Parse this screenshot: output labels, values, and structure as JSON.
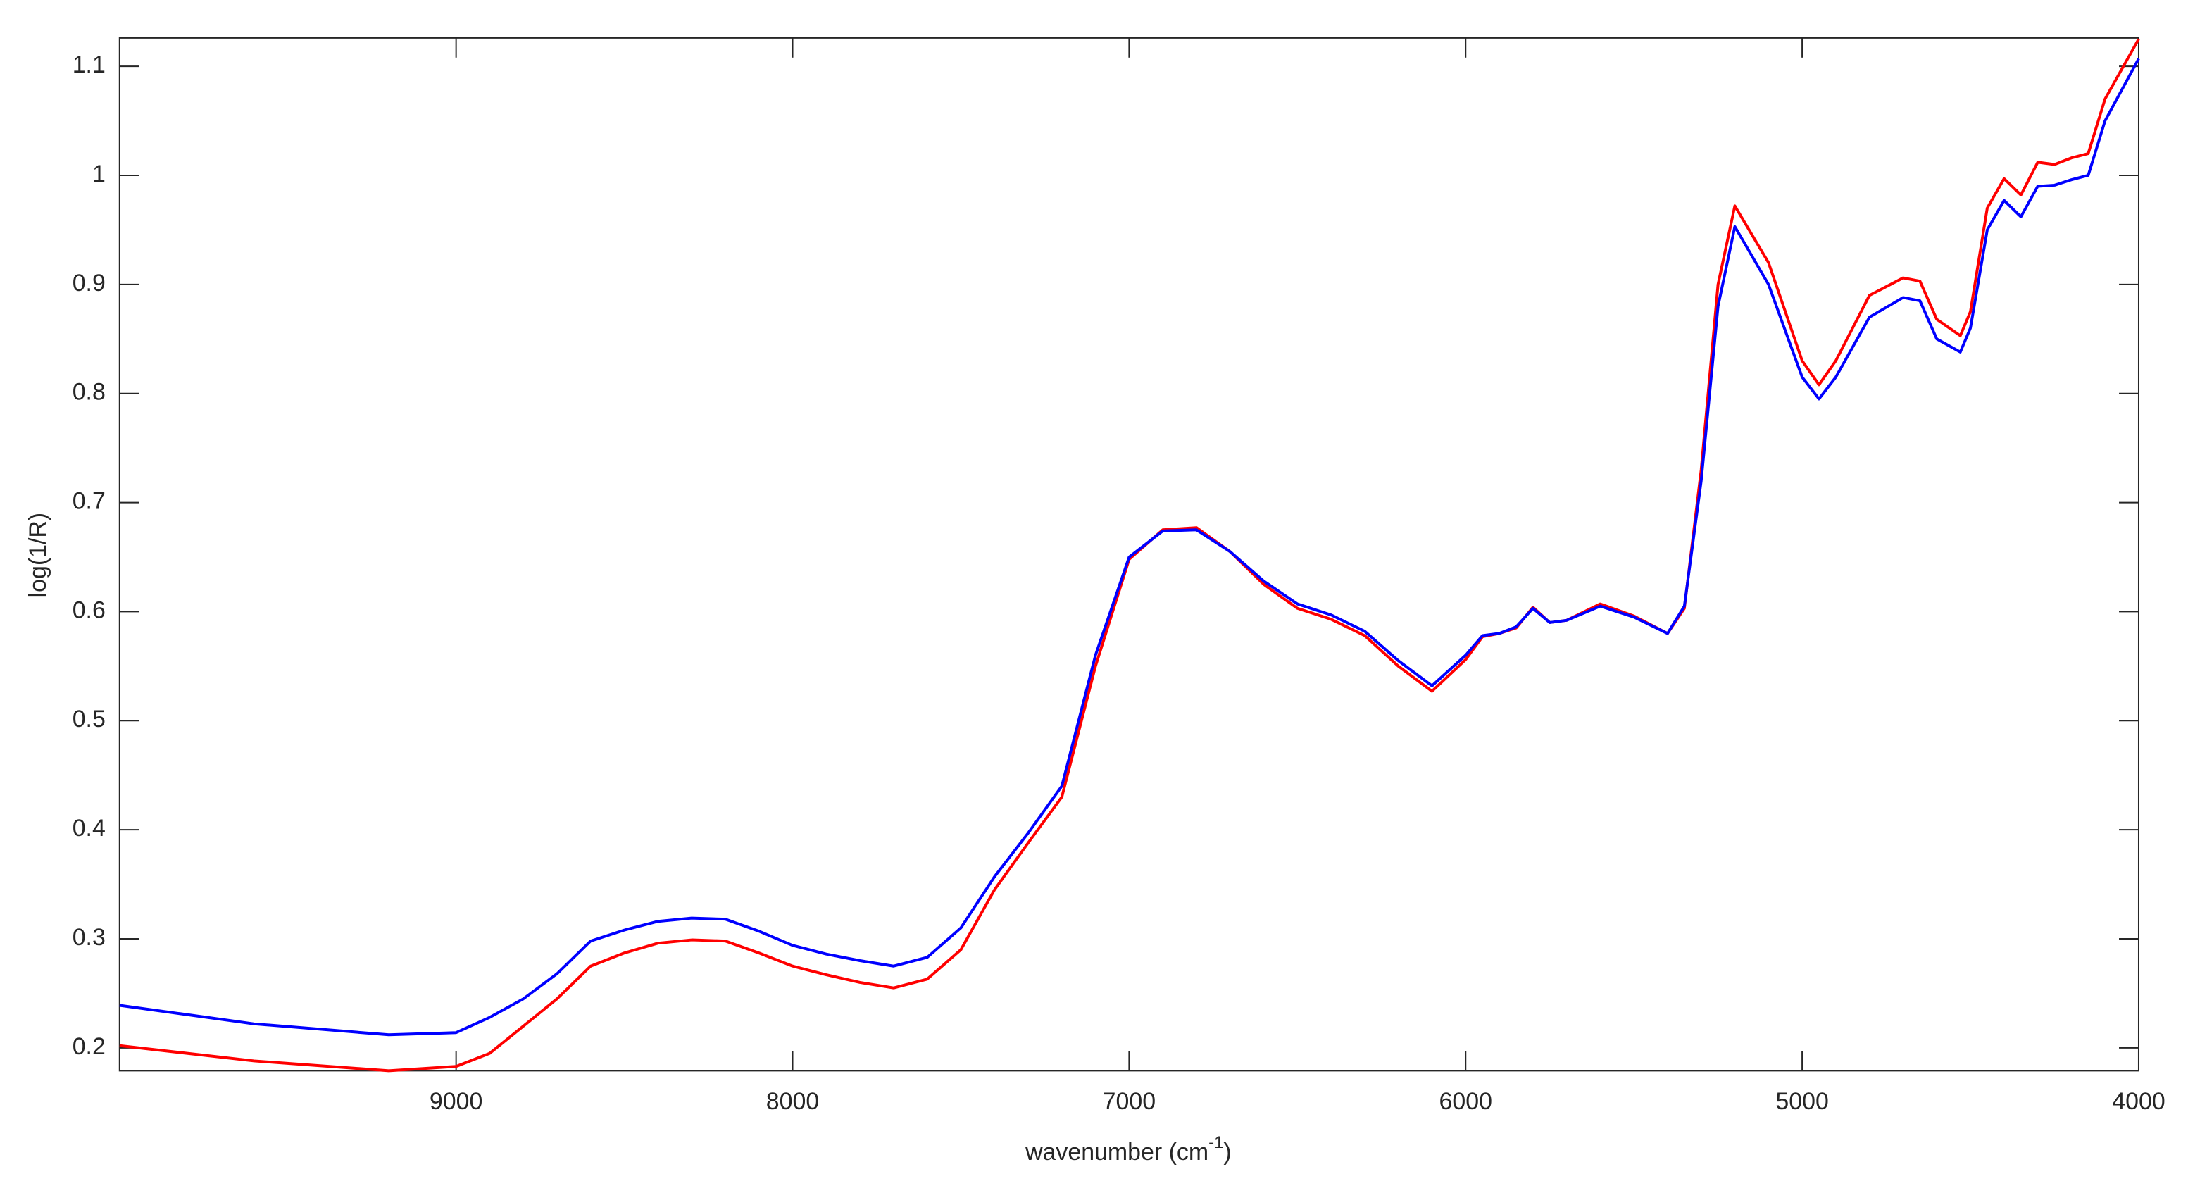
{
  "chart_data": {
    "type": "line",
    "xlabel": {
      "text": "wavenumber (cm",
      "superscript": "-1",
      "suffix": ")"
    },
    "ylabel": "log(1/R)",
    "x": [
      10000,
      9600,
      9200,
      9000,
      8900,
      8800,
      8700,
      8600,
      8500,
      8400,
      8300,
      8200,
      8100,
      8000,
      7900,
      7800,
      7700,
      7600,
      7500,
      7400,
      7300,
      7200,
      7100,
      7000,
      6900,
      6800,
      6700,
      6600,
      6500,
      6400,
      6300,
      6200,
      6100,
      6000,
      5950,
      5900,
      5850,
      5800,
      5750,
      5700,
      5600,
      5500,
      5400,
      5350,
      5300,
      5250,
      5200,
      5100,
      5000,
      4950,
      4900,
      4800,
      4700,
      4650,
      4600,
      4530,
      4500,
      4450,
      4400,
      4350,
      4300,
      4250,
      4200,
      4150,
      4100,
      4000
    ],
    "series": [
      {
        "color": "#ff0000",
        "values": [
          0.202,
          0.188,
          0.179,
          0.183,
          0.195,
          0.22,
          0.245,
          0.275,
          0.287,
          0.296,
          0.299,
          0.298,
          0.287,
          0.275,
          0.267,
          0.26,
          0.255,
          0.263,
          0.29,
          0.345,
          0.388,
          0.43,
          0.55,
          0.648,
          0.675,
          0.677,
          0.655,
          0.625,
          0.603,
          0.593,
          0.578,
          0.55,
          0.527,
          0.556,
          0.577,
          0.58,
          0.585,
          0.604,
          0.59,
          0.592,
          0.607,
          0.596,
          0.58,
          0.603,
          0.73,
          0.9,
          0.972,
          0.92,
          0.83,
          0.808,
          0.83,
          0.89,
          0.906,
          0.903,
          0.868,
          0.853,
          0.875,
          0.97,
          0.997,
          0.982,
          1.012,
          1.01,
          1.016,
          1.02,
          1.07,
          1.125
        ]
      },
      {
        "color": "#0000ff",
        "values": [
          0.239,
          0.222,
          0.212,
          0.214,
          0.228,
          0.245,
          0.268,
          0.298,
          0.308,
          0.316,
          0.319,
          0.318,
          0.307,
          0.294,
          0.286,
          0.28,
          0.275,
          0.283,
          0.31,
          0.357,
          0.397,
          0.44,
          0.56,
          0.65,
          0.674,
          0.675,
          0.655,
          0.628,
          0.607,
          0.597,
          0.582,
          0.555,
          0.532,
          0.56,
          0.578,
          0.58,
          0.586,
          0.603,
          0.59,
          0.592,
          0.605,
          0.595,
          0.58,
          0.605,
          0.72,
          0.88,
          0.953,
          0.9,
          0.815,
          0.795,
          0.815,
          0.87,
          0.888,
          0.885,
          0.85,
          0.838,
          0.86,
          0.95,
          0.977,
          0.962,
          0.99,
          0.991,
          0.996,
          1.0,
          1.05,
          1.107
        ]
      }
    ],
    "xlim": [
      10000,
      4000
    ],
    "xticks": [
      9000,
      8000,
      7000,
      6000,
      5000,
      4000
    ],
    "ylim": [
      0.179,
      1.126
    ],
    "yticks": [
      0.2,
      0.3,
      0.4,
      0.5,
      0.6,
      0.7,
      0.8,
      0.9,
      1,
      1.1
    ],
    "grid": false
  }
}
